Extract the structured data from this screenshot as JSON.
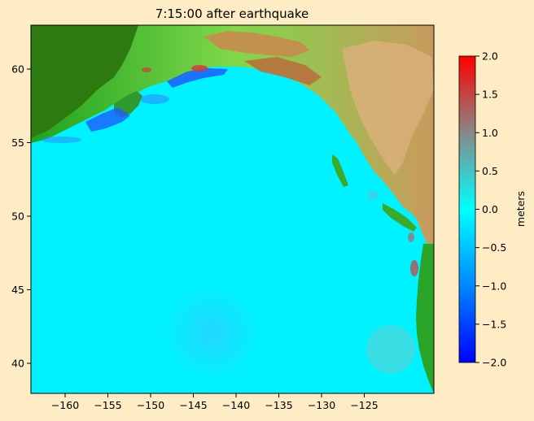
{
  "title": "7:15:00 after earthquake",
  "map": {
    "x_ticks": [
      "−160",
      "−155",
      "−150",
      "−145",
      "−140",
      "−135",
      "−130",
      "−125"
    ],
    "y_ticks": [
      "60",
      "55",
      "50",
      "45",
      "40"
    ],
    "ocean_color": "#00f5ff",
    "land_low_color": "#1ec81e",
    "land_high_color": "#c89a5a"
  },
  "colorbar": {
    "label": "meters",
    "ticks": [
      "2.0",
      "1.5",
      "1.0",
      "0.5",
      "0.0",
      "−0.5",
      "−1.0",
      "−1.5",
      "−2.0"
    ],
    "range": [
      -2.0,
      2.0
    ],
    "colors": [
      "#0000ff",
      "#0087ff",
      "#00ffff",
      "#888888",
      "#ff0000"
    ]
  }
}
